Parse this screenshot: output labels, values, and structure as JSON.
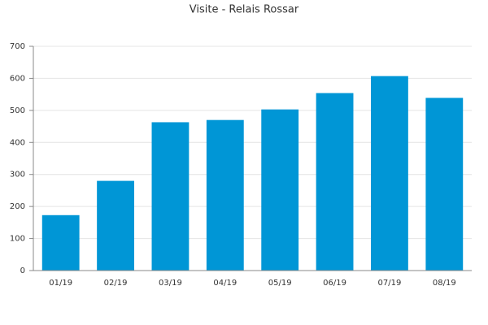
{
  "chart_data": {
    "type": "bar",
    "title": "Visite - Relais Rossar",
    "categories": [
      "01/19",
      "02/19",
      "03/19",
      "04/19",
      "05/19",
      "06/19",
      "07/19",
      "08/19"
    ],
    "values": [
      173,
      280,
      463,
      470,
      503,
      554,
      607,
      539
    ],
    "color": "#0096d6",
    "ylim": [
      0,
      700
    ],
    "yticks": [
      0,
      100,
      200,
      300,
      400,
      500,
      600,
      700
    ],
    "grid": true
  }
}
